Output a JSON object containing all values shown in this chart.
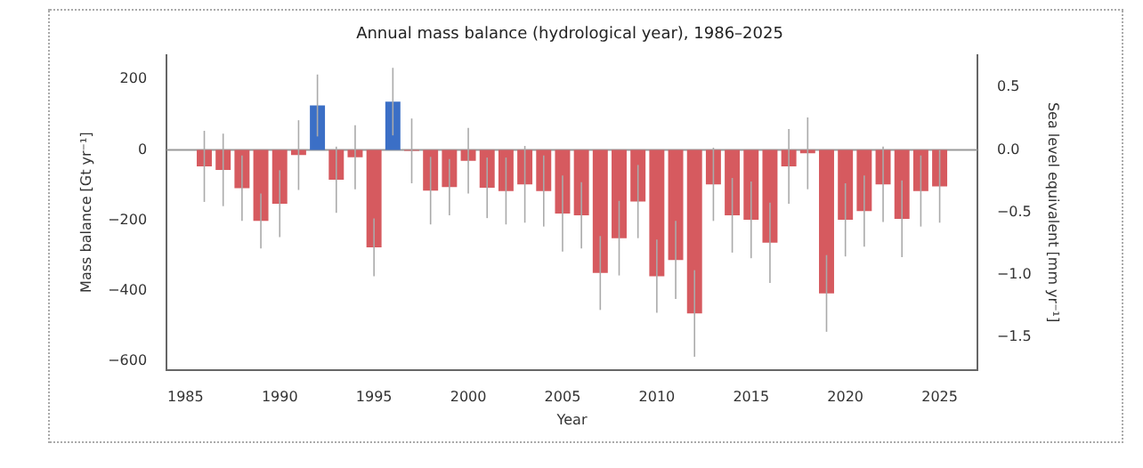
{
  "chart_data": {
    "type": "bar",
    "title": "Annual mass balance (hydrological year), 1986–2025",
    "xlabel": "Year",
    "ylabel": "Mass balance [Gt yr⁻¹]",
    "y2label": "Sea level equivalent [mm yr⁻¹]",
    "x": [
      1986,
      1987,
      1988,
      1989,
      1990,
      1991,
      1992,
      1993,
      1994,
      1995,
      1996,
      1997,
      1998,
      1999,
      2000,
      2001,
      2002,
      2003,
      2004,
      2005,
      2006,
      2007,
      2008,
      2009,
      2010,
      2011,
      2012,
      2013,
      2014,
      2015,
      2016,
      2017,
      2018,
      2019,
      2020,
      2021,
      2022,
      2023,
      2024,
      2025
    ],
    "values": [
      -47,
      -57,
      -109,
      -202,
      -153,
      -15,
      126,
      -85,
      -21,
      -277,
      137,
      -3,
      -116,
      -106,
      -31,
      -108,
      -117,
      -98,
      -117,
      -181,
      -186,
      -350,
      -251,
      -147,
      -359,
      -313,
      -465,
      -98,
      -186,
      -199,
      -264,
      -47,
      -10,
      -408,
      -199,
      -174,
      -98,
      -196,
      -117,
      -104
    ],
    "errors": [
      101,
      103,
      93,
      78,
      95,
      99,
      88,
      94,
      91,
      82,
      96,
      92,
      96,
      80,
      93,
      86,
      95,
      109,
      101,
      108,
      94,
      105,
      106,
      104,
      104,
      111,
      123,
      104,
      106,
      109,
      114,
      106,
      102,
      109,
      104,
      101,
      107,
      109,
      101,
      103
    ],
    "colors": [
      "#d65a5f",
      "#d65a5f",
      "#d65a5f",
      "#d65a5f",
      "#d65a5f",
      "#d65a5f",
      "#3b6fc6",
      "#d65a5f",
      "#d65a5f",
      "#d65a5f",
      "#3b6fc6",
      "#d65a5f",
      "#d65a5f",
      "#d65a5f",
      "#d65a5f",
      "#d65a5f",
      "#d65a5f",
      "#d65a5f",
      "#d65a5f",
      "#d65a5f",
      "#d65a5f",
      "#d65a5f",
      "#d65a5f",
      "#d65a5f",
      "#d65a5f",
      "#d65a5f",
      "#d65a5f",
      "#d65a5f",
      "#d65a5f",
      "#d65a5f",
      "#d65a5f",
      "#d65a5f",
      "#d65a5f",
      "#d65a5f",
      "#d65a5f",
      "#d65a5f",
      "#d65a5f",
      "#d65a5f",
      "#d65a5f",
      "#d65a5f"
    ],
    "xlim": [
      1984,
      2027
    ],
    "xticks": [
      1985,
      1990,
      1995,
      2000,
      2005,
      2010,
      2015,
      2020,
      2025
    ],
    "ylim": [
      -625,
      270
    ],
    "yticks": [
      -600,
      -400,
      -200,
      0,
      200
    ],
    "y2lim": [
      -1.76,
      0.76
    ],
    "y2ticks": [
      -1.5,
      {
        "value": -1,
        "label": "−1.0"
      },
      -0.5,
      {
        "value": 0,
        "label": "0.0"
      },
      0.5
    ],
    "ref_lines": [
      {
        "axis": "y",
        "value": 0,
        "color": "#999999"
      }
    ]
  }
}
